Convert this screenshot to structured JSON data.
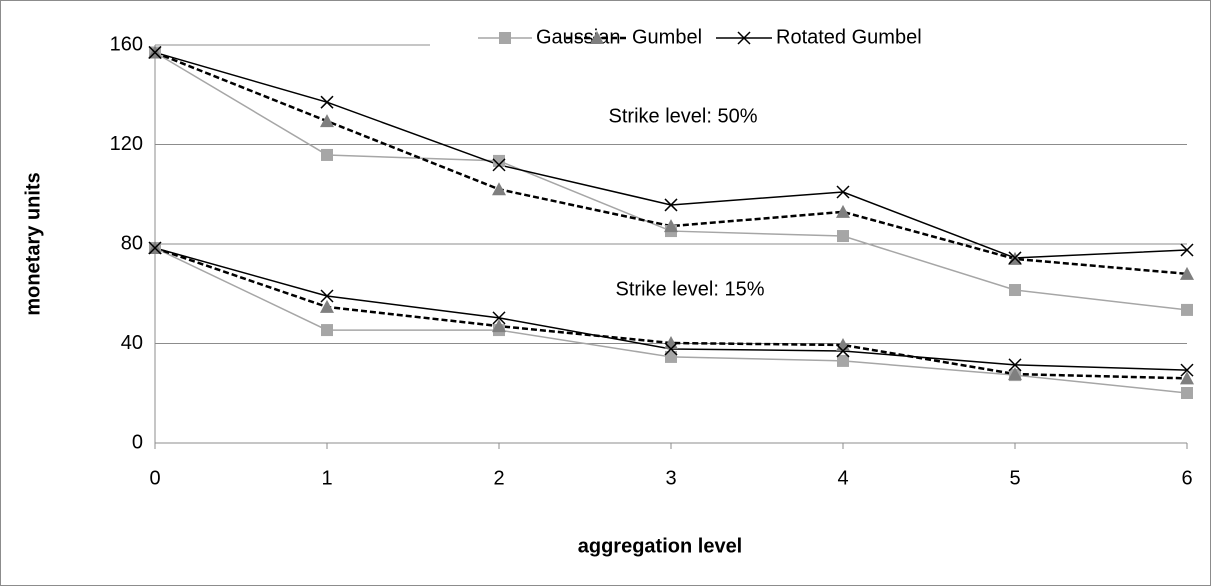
{
  "chart_data": {
    "type": "line",
    "x_label": "aggregation level",
    "y_label": "monetary units",
    "x": [
      0,
      1,
      2,
      3,
      4,
      5,
      6
    ],
    "xlim": [
      0,
      6
    ],
    "xticks": [
      0,
      1,
      2,
      3,
      4,
      5,
      6
    ],
    "ylim": [
      0,
      160
    ],
    "yticks": [
      0,
      40,
      80,
      120,
      160
    ],
    "grid": true,
    "legend": "top",
    "series": [
      {
        "name": "Gaussian",
        "color": "#a6a6a6",
        "marker_color": "#a6a6a6",
        "marker": "square",
        "dash": false,
        "width": 1.5
      },
      {
        "name": "Gumbel",
        "color": "#000000",
        "marker_color": "#7f7f7f",
        "marker": "triangle",
        "dash": true,
        "width": 2.5
      },
      {
        "name": "Rotated Gumbel",
        "color": "#000000",
        "marker_color": "#000000",
        "marker": "cross",
        "dash": false,
        "width": 1.5
      }
    ],
    "groups": [
      {
        "label": "Strike level: 50%",
        "values": [
          [
            157,
            115.8,
            113.4,
            85.2,
            83.2,
            61.5,
            53.5
          ],
          [
            157,
            129.4,
            102,
            87.2,
            92.9,
            74,
            68
          ],
          [
            157,
            137,
            111.8,
            95.7,
            100.9,
            74.4,
            77.6
          ]
        ]
      },
      {
        "label": "Strike level: 15%",
        "values": [
          [
            78.4,
            45.4,
            45.4,
            34.6,
            33,
            27.3,
            20.1
          ],
          [
            78.4,
            54.7,
            47,
            40.2,
            39.4,
            27.7,
            26
          ],
          [
            78.4,
            59.1,
            50.3,
            37.8,
            37,
            31.4,
            29.3
          ]
        ]
      }
    ]
  }
}
